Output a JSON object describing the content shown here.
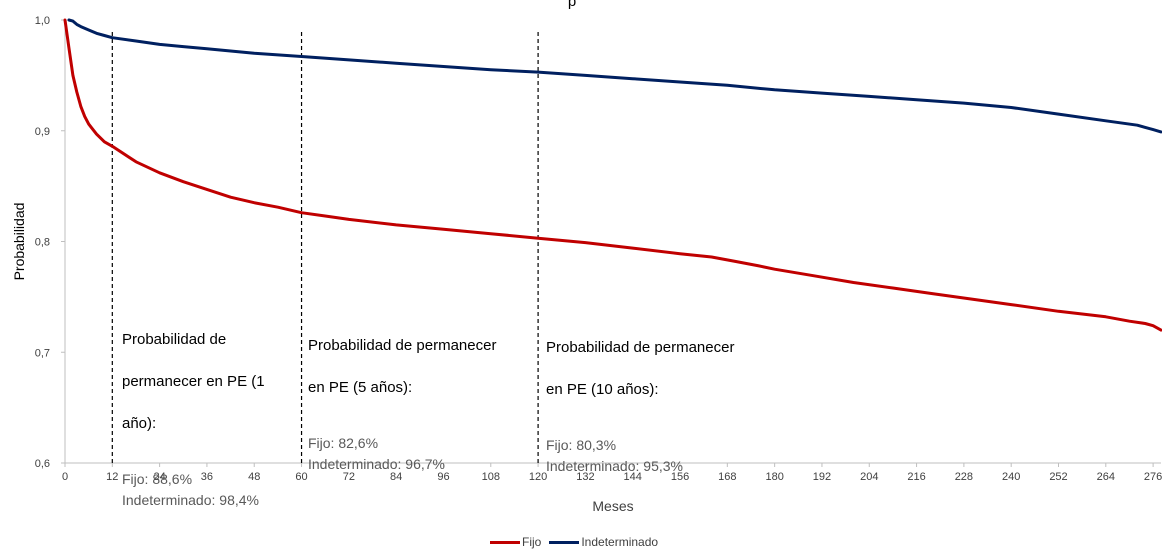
{
  "chart_data": {
    "type": "line",
    "title": "",
    "title_partial": "p",
    "xlabel": "Meses",
    "ylabel": "Probabilidad",
    "xlim": [
      0,
      278
    ],
    "ylim": [
      0.6,
      1.0
    ],
    "x_ticks": [
      0,
      12,
      24,
      36,
      48,
      60,
      72,
      84,
      96,
      108,
      120,
      132,
      144,
      156,
      168,
      180,
      192,
      204,
      216,
      228,
      240,
      252,
      264,
      276
    ],
    "y_ticks": [
      {
        "value": 0.6,
        "label": "0,6"
      },
      {
        "value": 0.7,
        "label": "0,7"
      },
      {
        "value": 0.8,
        "label": "0,8"
      },
      {
        "value": 0.9,
        "label": "0,9"
      },
      {
        "value": 1.0,
        "label": "1,0"
      }
    ],
    "grid": false,
    "legend_position": "bottom-center",
    "reference_lines_x": [
      12,
      60,
      120
    ],
    "series": [
      {
        "name": "Fijo",
        "color": "#c00000",
        "x": [
          0,
          1,
          2,
          3,
          4,
          5,
          6,
          8,
          10,
          12,
          18,
          24,
          30,
          36,
          42,
          48,
          54,
          60,
          66,
          72,
          84,
          96,
          108,
          120,
          132,
          144,
          156,
          164,
          170,
          176,
          180,
          190,
          200,
          210,
          220,
          230,
          240,
          252,
          264,
          270,
          274,
          276,
          278
        ],
        "y": [
          1.0,
          0.975,
          0.95,
          0.935,
          0.922,
          0.913,
          0.906,
          0.897,
          0.89,
          0.886,
          0.872,
          0.862,
          0.854,
          0.847,
          0.84,
          0.835,
          0.831,
          0.826,
          0.823,
          0.82,
          0.815,
          0.811,
          0.807,
          0.803,
          0.799,
          0.794,
          0.789,
          0.786,
          0.782,
          0.778,
          0.775,
          0.769,
          0.763,
          0.758,
          0.753,
          0.748,
          0.743,
          0.737,
          0.732,
          0.728,
          0.726,
          0.724,
          0.72
        ]
      },
      {
        "name": "Indeterminado",
        "color": "#002060",
        "x": [
          1,
          2,
          3,
          4,
          6,
          8,
          10,
          12,
          18,
          24,
          30,
          36,
          48,
          60,
          72,
          84,
          96,
          108,
          120,
          132,
          144,
          156,
          168,
          180,
          192,
          204,
          216,
          228,
          240,
          252,
          264,
          272,
          276,
          278
        ],
        "y": [
          1.0,
          0.999,
          0.996,
          0.994,
          0.991,
          0.988,
          0.986,
          0.984,
          0.981,
          0.978,
          0.976,
          0.974,
          0.97,
          0.967,
          0.964,
          0.961,
          0.958,
          0.955,
          0.953,
          0.95,
          0.947,
          0.944,
          0.941,
          0.937,
          0.934,
          0.931,
          0.928,
          0.925,
          0.921,
          0.915,
          0.909,
          0.905,
          0.901,
          0.899
        ]
      }
    ],
    "annotations": [
      {
        "head_lines": [
          "Probabilidad de",
          "permanecer en PE (1",
          "año):"
        ],
        "body_lines": [
          "Fijo: 88,6%",
          "Indeterminado: 98,4%"
        ]
      },
      {
        "head_lines": [
          "Probabilidad de permanecer",
          "en PE (5 años):"
        ],
        "body_lines": [
          "Fijo: 82,6%",
          "Indeterminado: 96,7%"
        ]
      },
      {
        "head_lines": [
          "Probabilidad de permanecer",
          "en PE (10 años):"
        ],
        "body_lines": [
          "Fijo: 80,3%",
          "Indeterminado: 95,3%"
        ]
      }
    ]
  }
}
